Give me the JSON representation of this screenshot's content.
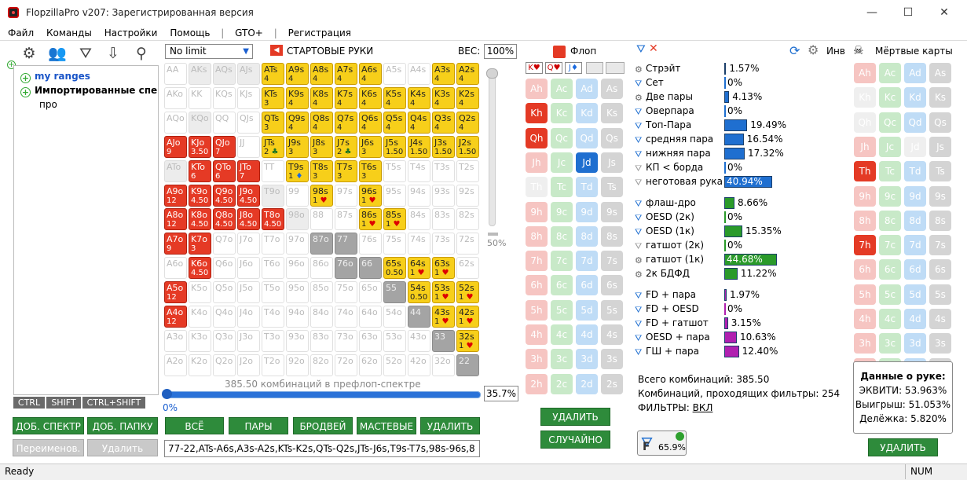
{
  "window": {
    "title": "FlopzillaPro v207: Зарегистрированная версия",
    "min": "—",
    "max": "☐",
    "close": "✕"
  },
  "menu": [
    "Файл",
    "Команды",
    "Настройки",
    "Помощь",
    "|",
    "GTO+",
    "|",
    "Регистрация"
  ],
  "tree": {
    "items": [
      {
        "label": "my ranges"
      },
      {
        "label": "Импортированные спе"
      },
      {
        "label": "про"
      }
    ]
  },
  "modifiers": [
    "CTRL",
    "SHIFT",
    "CTRL+SHIFT"
  ],
  "left_buttons": {
    "add_spectrum": "ДОБ. СПЕКТР",
    "add_folder": "ДОБ. ПАПКУ",
    "rename": "Переименов.",
    "delete": "Удалить"
  },
  "range": {
    "limit": "No limit",
    "header": "СТАРТОВЫЕ РУКИ",
    "weight_label": "ВЕС:",
    "weight": "100%",
    "slider_pct": "50%",
    "combos_text": "385.50 комбинаций в префлоп-спектре",
    "pct_left": "0%",
    "pct_right": "35.7%",
    "range_string": "77-22,ATs-A6s,A3s-A2s,KTs-K2s,QTs-Q2s,JTs-J6s,T9s-T7s,98s-96s,8"
  },
  "matrix": [
    [
      [
        "AA",
        "x"
      ],
      [
        "AKs",
        "g"
      ],
      [
        "AQs",
        "g"
      ],
      [
        "AJs",
        "g"
      ],
      [
        "ATs",
        "y",
        "4"
      ],
      [
        "A9s",
        "y",
        "4"
      ],
      [
        "A8s",
        "y",
        "4"
      ],
      [
        "A7s",
        "y",
        "4"
      ],
      [
        "A6s",
        "y",
        "4"
      ],
      [
        "A5s",
        "x"
      ],
      [
        "A4s",
        "x"
      ],
      [
        "A3s",
        "y",
        "4"
      ],
      [
        "A2s",
        "y",
        "4"
      ]
    ],
    [
      [
        "AKo",
        "x"
      ],
      [
        "KK",
        "x"
      ],
      [
        "KQs",
        "x"
      ],
      [
        "KJs",
        "x"
      ],
      [
        "KTs",
        "y",
        "3"
      ],
      [
        "K9s",
        "y",
        "4"
      ],
      [
        "K8s",
        "y",
        "4"
      ],
      [
        "K7s",
        "y",
        "4"
      ],
      [
        "K6s",
        "y",
        "4"
      ],
      [
        "K5s",
        "y",
        "4"
      ],
      [
        "K4s",
        "y",
        "4"
      ],
      [
        "K3s",
        "y",
        "4"
      ],
      [
        "K2s",
        "y",
        "4"
      ]
    ],
    [
      [
        "AQo",
        "x"
      ],
      [
        "KQo",
        "g"
      ],
      [
        "QQ",
        "x"
      ],
      [
        "QJs",
        "x"
      ],
      [
        "QTs",
        "y",
        "3"
      ],
      [
        "Q9s",
        "y",
        "4"
      ],
      [
        "Q8s",
        "y",
        "4"
      ],
      [
        "Q7s",
        "y",
        "4"
      ],
      [
        "Q6s",
        "y",
        "4"
      ],
      [
        "Q5s",
        "y",
        "4"
      ],
      [
        "Q4s",
        "y",
        "4"
      ],
      [
        "Q3s",
        "y",
        "4"
      ],
      [
        "Q2s",
        "y",
        "4"
      ]
    ],
    [
      [
        "AJo",
        "r",
        "9"
      ],
      [
        "KJo",
        "r",
        "3.50"
      ],
      [
        "QJo",
        "r",
        "7"
      ],
      [
        "JJ",
        "x"
      ],
      [
        "JTs",
        "y",
        "2c"
      ],
      [
        "J9s",
        "y",
        "3"
      ],
      [
        "J8s",
        "y",
        "3"
      ],
      [
        "J7s",
        "y",
        "2c"
      ],
      [
        "J6s",
        "y",
        "3"
      ],
      [
        "J5s",
        "y",
        "1.50"
      ],
      [
        "J4s",
        "y",
        "1.50"
      ],
      [
        "J3s",
        "y",
        "1.50"
      ],
      [
        "J2s",
        "y",
        "1.50"
      ]
    ],
    [
      [
        "ATo",
        "g"
      ],
      [
        "KTo",
        "r",
        "6"
      ],
      [
        "QTo",
        "r",
        "6"
      ],
      [
        "JTo",
        "r",
        "7"
      ],
      [
        "TT",
        "x"
      ],
      [
        "T9s",
        "y",
        "1d"
      ],
      [
        "T8s",
        "y",
        "3"
      ],
      [
        "T7s",
        "y",
        "3"
      ],
      [
        "T6s",
        "y",
        "3"
      ],
      [
        "T5s",
        "x"
      ],
      [
        "T4s",
        "x"
      ],
      [
        "T3s",
        "x"
      ],
      [
        "T2s",
        "x"
      ]
    ],
    [
      [
        "A9o",
        "r",
        "12"
      ],
      [
        "K9o",
        "r",
        "4.50"
      ],
      [
        "Q9o",
        "r",
        "4.50"
      ],
      [
        "J9o",
        "r",
        "4.50"
      ],
      [
        "T9o",
        "g"
      ],
      [
        "99",
        "x"
      ],
      [
        "98s",
        "y",
        "1h"
      ],
      [
        "97s",
        "x"
      ],
      [
        "96s",
        "y",
        "1h"
      ],
      [
        "95s",
        "x"
      ],
      [
        "94s",
        "x"
      ],
      [
        "93s",
        "x"
      ],
      [
        "92s",
        "x"
      ]
    ],
    [
      [
        "A8o",
        "r",
        "12"
      ],
      [
        "K8o",
        "r",
        "4.50"
      ],
      [
        "Q8o",
        "r",
        "4.50"
      ],
      [
        "J8o",
        "r",
        "4.50"
      ],
      [
        "T8o",
        "r",
        "4.50"
      ],
      [
        "98o",
        "g"
      ],
      [
        "88",
        "x"
      ],
      [
        "87s",
        "x"
      ],
      [
        "86s",
        "y",
        "1h"
      ],
      [
        "85s",
        "y",
        "1h"
      ],
      [
        "84s",
        "x"
      ],
      [
        "83s",
        "x"
      ],
      [
        "82s",
        "x"
      ]
    ],
    [
      [
        "A7o",
        "r",
        "9"
      ],
      [
        "K7o",
        "r",
        "3"
      ],
      [
        "Q7o",
        "x"
      ],
      [
        "J7o",
        "x"
      ],
      [
        "T7o",
        "x"
      ],
      [
        "97o",
        "x"
      ],
      [
        "87o",
        "d"
      ],
      [
        "77",
        "d"
      ],
      [
        "76s",
        "x"
      ],
      [
        "75s",
        "x"
      ],
      [
        "74s",
        "x"
      ],
      [
        "73s",
        "x"
      ],
      [
        "72s",
        "x"
      ]
    ],
    [
      [
        "A6o",
        "x"
      ],
      [
        "K6o",
        "r",
        "4.50"
      ],
      [
        "Q6o",
        "x"
      ],
      [
        "J6o",
        "x"
      ],
      [
        "T6o",
        "x"
      ],
      [
        "96o",
        "x"
      ],
      [
        "86o",
        "x"
      ],
      [
        "76o",
        "d"
      ],
      [
        "66",
        "d"
      ],
      [
        "65s",
        "y",
        "0.50"
      ],
      [
        "64s",
        "y",
        "1h"
      ],
      [
        "63s",
        "y",
        "1h"
      ],
      [
        "62s",
        "x"
      ]
    ],
    [
      [
        "A5o",
        "r",
        "12"
      ],
      [
        "K5o",
        "x"
      ],
      [
        "Q5o",
        "x"
      ],
      [
        "J5o",
        "x"
      ],
      [
        "T5o",
        "x"
      ],
      [
        "95o",
        "x"
      ],
      [
        "85o",
        "x"
      ],
      [
        "75o",
        "x"
      ],
      [
        "65o",
        "x"
      ],
      [
        "55",
        "d"
      ],
      [
        "54s",
        "y",
        "0.50"
      ],
      [
        "53s",
        "y",
        "1h"
      ],
      [
        "52s",
        "y",
        "1h"
      ]
    ],
    [
      [
        "A4o",
        "r",
        "12"
      ],
      [
        "K4o",
        "x"
      ],
      [
        "Q4o",
        "x"
      ],
      [
        "J4o",
        "x"
      ],
      [
        "T4o",
        "x"
      ],
      [
        "94o",
        "x"
      ],
      [
        "84o",
        "x"
      ],
      [
        "74o",
        "x"
      ],
      [
        "64o",
        "x"
      ],
      [
        "54o",
        "x"
      ],
      [
        "44",
        "d"
      ],
      [
        "43s",
        "y",
        "1h"
      ],
      [
        "42s",
        "y",
        "1h"
      ]
    ],
    [
      [
        "A3o",
        "x"
      ],
      [
        "K3o",
        "x"
      ],
      [
        "Q3o",
        "x"
      ],
      [
        "J3o",
        "x"
      ],
      [
        "T3o",
        "x"
      ],
      [
        "93o",
        "x"
      ],
      [
        "83o",
        "x"
      ],
      [
        "73o",
        "x"
      ],
      [
        "63o",
        "x"
      ],
      [
        "53o",
        "x"
      ],
      [
        "43o",
        "x"
      ],
      [
        "33",
        "d"
      ],
      [
        "32s",
        "y",
        "1h"
      ]
    ],
    [
      [
        "A2o",
        "x"
      ],
      [
        "K2o",
        "x"
      ],
      [
        "Q2o",
        "x"
      ],
      [
        "J2o",
        "x"
      ],
      [
        "T2o",
        "x"
      ],
      [
        "92o",
        "x"
      ],
      [
        "82o",
        "x"
      ],
      [
        "72o",
        "x"
      ],
      [
        "62o",
        "x"
      ],
      [
        "52o",
        "x"
      ],
      [
        "42o",
        "x"
      ],
      [
        "32o",
        "x"
      ],
      [
        "22",
        "d"
      ]
    ]
  ],
  "range_buttons": [
    "ВСЁ",
    "ПАРЫ",
    "БРОДВЕЙ",
    "МАСТЕВЫЕ",
    "УДАЛИТЬ"
  ],
  "flop": {
    "title": "Флоп",
    "board": [
      "K♥",
      "Q♥",
      "J♦",
      "",
      ""
    ],
    "delete": "УДАЛИТЬ",
    "random": "СЛУЧАЙНО",
    "grid": [
      [
        "Ah",
        "h"
      ],
      [
        "Ac",
        "c"
      ],
      [
        "Ad",
        "d"
      ],
      [
        "As",
        "s"
      ],
      [
        "Kh",
        "hs"
      ],
      [
        "Kc",
        "c"
      ],
      [
        "Kd",
        "d"
      ],
      [
        "Ks",
        "s"
      ],
      [
        "Qh",
        "hs"
      ],
      [
        "Qc",
        "c"
      ],
      [
        "Qd",
        "d"
      ],
      [
        "Qs",
        "s"
      ],
      [
        "Jh",
        "h"
      ],
      [
        "Jc",
        "c"
      ],
      [
        "Jd",
        "ds"
      ],
      [
        "Js",
        "s"
      ],
      [
        "Th",
        "x"
      ],
      [
        "Tc",
        "c"
      ],
      [
        "Td",
        "d"
      ],
      [
        "Ts",
        "s"
      ],
      [
        "9h",
        "h"
      ],
      [
        "9c",
        "c"
      ],
      [
        "9d",
        "d"
      ],
      [
        "9s",
        "s"
      ],
      [
        "8h",
        "h"
      ],
      [
        "8c",
        "c"
      ],
      [
        "8d",
        "d"
      ],
      [
        "8s",
        "s"
      ],
      [
        "7h",
        "h"
      ],
      [
        "7c",
        "c"
      ],
      [
        "7d",
        "d"
      ],
      [
        "7s",
        "s"
      ],
      [
        "6h",
        "h"
      ],
      [
        "6c",
        "c"
      ],
      [
        "6d",
        "d"
      ],
      [
        "6s",
        "s"
      ],
      [
        "5h",
        "h"
      ],
      [
        "5c",
        "c"
      ],
      [
        "5d",
        "d"
      ],
      [
        "5s",
        "s"
      ],
      [
        "4h",
        "h"
      ],
      [
        "4c",
        "c"
      ],
      [
        "4d",
        "d"
      ],
      [
        "4s",
        "s"
      ],
      [
        "3h",
        "h"
      ],
      [
        "3c",
        "c"
      ],
      [
        "3d",
        "d"
      ],
      [
        "3s",
        "s"
      ],
      [
        "2h",
        "h"
      ],
      [
        "2c",
        "c"
      ],
      [
        "2d",
        "d"
      ],
      [
        "2s",
        "s"
      ]
    ]
  },
  "stats": {
    "inv_label": "Инв",
    "rows": [
      {
        "label": "Стрэйт",
        "pct": "1.57%",
        "v": 1.57,
        "color": "#1f6fd0",
        "icon": "gear"
      },
      {
        "label": "Сет",
        "pct": "0%",
        "v": 0,
        "color": "#1f6fd0",
        "icon": "filter"
      },
      {
        "label": "Две пары",
        "pct": "4.13%",
        "v": 4.13,
        "color": "#1f6fd0",
        "icon": "gear"
      },
      {
        "label": "Оверпара",
        "pct": "0%",
        "v": 0,
        "color": "#1f6fd0",
        "icon": "filter"
      },
      {
        "label": "Топ-Пара",
        "pct": "19.49%",
        "v": 19.49,
        "color": "#1f6fd0",
        "icon": "filter"
      },
      {
        "label": "средняя пара",
        "pct": "16.54%",
        "v": 16.54,
        "color": "#1f6fd0",
        "icon": "filter"
      },
      {
        "label": "нижняя пара",
        "pct": "17.32%",
        "v": 17.32,
        "color": "#1f6fd0",
        "icon": "filter"
      },
      {
        "label": "КП < борда",
        "pct": "0%",
        "v": 0,
        "color": "#1f6fd0",
        "icon": "filter-g"
      },
      {
        "label": "неготовая рука",
        "pct": "40.94%",
        "v": 40.94,
        "color": "#1f6fd0",
        "icon": "filter-g"
      },
      {
        "label": "флаш-дро",
        "pct": "8.66%",
        "v": 8.66,
        "color": "#2a9a2a",
        "icon": "filter"
      },
      {
        "label": "OESD (2к)",
        "pct": "0%",
        "v": 0,
        "color": "#2a9a2a",
        "icon": "filter"
      },
      {
        "label": "OESD (1к)",
        "pct": "15.35%",
        "v": 15.35,
        "color": "#2a9a2a",
        "icon": "filter"
      },
      {
        "label": "гатшот (2к)",
        "pct": "0%",
        "v": 0,
        "color": "#2a9a2a",
        "icon": "filter-g"
      },
      {
        "label": "гатшот (1к)",
        "pct": "44.68%",
        "v": 44.68,
        "color": "#2a9a2a",
        "icon": "gear"
      },
      {
        "label": "2к БДФД",
        "pct": "11.22%",
        "v": 11.22,
        "color": "#2a9a2a",
        "icon": "gear"
      },
      {
        "label": "FD + пара",
        "pct": "1.97%",
        "v": 1.97,
        "color": "#b020b0",
        "icon": "filter"
      },
      {
        "label": "FD + OESD",
        "pct": "0%",
        "v": 0,
        "color": "#b020b0",
        "icon": "filter"
      },
      {
        "label": "FD + гатшот",
        "pct": "3.15%",
        "v": 3.15,
        "color": "#b020b0",
        "icon": "filter"
      },
      {
        "label": "OESD + пара",
        "pct": "10.63%",
        "v": 10.63,
        "color": "#b020b0",
        "icon": "filter"
      },
      {
        "label": "ГШ + пара",
        "pct": "12.40%",
        "v": 12.4,
        "color": "#b020b0",
        "icon": "filter"
      }
    ],
    "total": "Всего комбинаций: 385.50",
    "passing": "Комбинаций, проходящих фильтры: 254",
    "filters_label": "ФИЛЬТРЫ:",
    "filters_value": "ВКЛ",
    "badge": "65.9%"
  },
  "dead": {
    "title": "Мёртвые карты",
    "delete": "УДАЛИТЬ",
    "grid": [
      [
        "Ah",
        "h"
      ],
      [
        "Ac",
        "c"
      ],
      [
        "Ad",
        "d"
      ],
      [
        "As",
        "s"
      ],
      [
        "Kh",
        "x"
      ],
      [
        "Kc",
        "c"
      ],
      [
        "Kd",
        "d"
      ],
      [
        "Ks",
        "s"
      ],
      [
        "Qh",
        "x"
      ],
      [
        "Qc",
        "c"
      ],
      [
        "Qd",
        "d"
      ],
      [
        "Qs",
        "s"
      ],
      [
        "Jh",
        "h"
      ],
      [
        "Jc",
        "c"
      ],
      [
        "Jd",
        "x"
      ],
      [
        "Js",
        "s"
      ],
      [
        "Th",
        "hs"
      ],
      [
        "Tc",
        "c"
      ],
      [
        "Td",
        "d"
      ],
      [
        "Ts",
        "s"
      ],
      [
        "9h",
        "h"
      ],
      [
        "9c",
        "c"
      ],
      [
        "9d",
        "d"
      ],
      [
        "9s",
        "s"
      ],
      [
        "8h",
        "h"
      ],
      [
        "8c",
        "c"
      ],
      [
        "8d",
        "d"
      ],
      [
        "8s",
        "s"
      ],
      [
        "7h",
        "hs"
      ],
      [
        "7c",
        "c"
      ],
      [
        "7d",
        "d"
      ],
      [
        "7s",
        "s"
      ],
      [
        "6h",
        "h"
      ],
      [
        "6c",
        "c"
      ],
      [
        "6d",
        "d"
      ],
      [
        "6s",
        "s"
      ],
      [
        "5h",
        "h"
      ],
      [
        "5c",
        "c"
      ],
      [
        "5d",
        "d"
      ],
      [
        "5s",
        "s"
      ],
      [
        "4h",
        "h"
      ],
      [
        "4c",
        "c"
      ],
      [
        "4d",
        "d"
      ],
      [
        "4s",
        "s"
      ],
      [
        "3h",
        "h"
      ],
      [
        "3c",
        "c"
      ],
      [
        "3d",
        "d"
      ],
      [
        "3s",
        "s"
      ],
      [
        "2h",
        "h"
      ],
      [
        "2c",
        "c"
      ],
      [
        "2d",
        "d"
      ],
      [
        "2s",
        "s"
      ]
    ]
  },
  "hand_data": {
    "title": "Данные о руке:",
    "equity": "ЭКВИТИ: 53.963%",
    "win": "Выигрыш: 51.053%",
    "tie": "Делёжка: 5.820%"
  },
  "status": {
    "left": "Ready",
    "right": "NUM"
  }
}
